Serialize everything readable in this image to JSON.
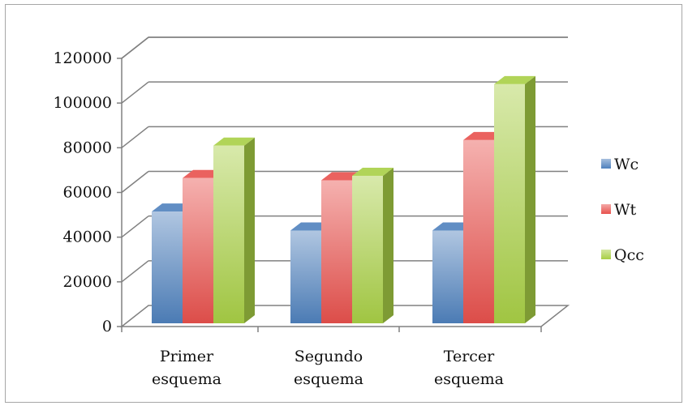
{
  "chart_data": {
    "type": "bar",
    "title": "",
    "xlabel": "",
    "ylabel": "",
    "categories": [
      [
        "Primer",
        "esquema"
      ],
      [
        "Segundo",
        "esquema"
      ],
      [
        "Tercer",
        "esquema"
      ]
    ],
    "series": [
      {
        "name": "Wc",
        "values": [
          50000,
          41500,
          41500
        ],
        "color": "#4f81bd"
      },
      {
        "name": "Wt",
        "values": [
          65000,
          64000,
          82000
        ],
        "color": "#e8514d"
      },
      {
        "name": "Qcc",
        "values": [
          79500,
          66000,
          107000
        ],
        "color": "#a8cf45"
      }
    ],
    "ylim": [
      0,
      120000
    ],
    "yticks": [
      "0",
      "20000",
      "40000",
      "60000",
      "80000",
      "100000",
      "120000"
    ],
    "grid": true,
    "legend": "right",
    "style": "3d-clustered-column"
  }
}
